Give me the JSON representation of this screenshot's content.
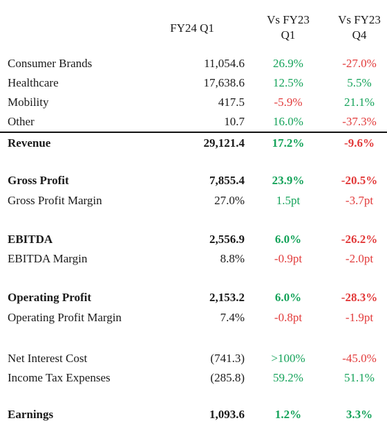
{
  "headers": {
    "col0": "",
    "col1": "FY24 Q1",
    "col2_line1": "Vs FY23",
    "col2_line2": "Q1",
    "col3_line1": "Vs FY23",
    "col3_line2": "Q4"
  },
  "rows": [
    {
      "label": "Consumer Brands",
      "value": "11,054.6",
      "vs_q1": "26.9%",
      "vs_q4": "-27.0%",
      "bold": false
    },
    {
      "label": "Healthcare",
      "value": "17,638.6",
      "vs_q1": "12.5%",
      "vs_q4": "5.5%",
      "bold": false
    },
    {
      "label": "Mobility",
      "value": "417.5",
      "vs_q1": "-5.9%",
      "vs_q4": "21.1%",
      "bold": false
    },
    {
      "label": "Other",
      "value": "10.7",
      "vs_q1": "16.0%",
      "vs_q4": "-37.3%",
      "bold": false
    },
    {
      "label": "Revenue",
      "value": "29,121.4",
      "vs_q1": "17.2%",
      "vs_q4": "-9.6%",
      "bold": true
    },
    {
      "label": "Gross Profit",
      "value": "7,855.4",
      "vs_q1": "23.9%",
      "vs_q4": "-20.5%",
      "bold": true
    },
    {
      "label": "Gross Profit Margin",
      "value": "27.0%",
      "vs_q1": "1.5pt",
      "vs_q4": "-3.7pt",
      "bold": false
    },
    {
      "label": "EBITDA",
      "value": "2,556.9",
      "vs_q1": "6.0%",
      "vs_q4": "-26.2%",
      "bold": true
    },
    {
      "label": "EBITDA Margin",
      "value": "8.8%",
      "vs_q1": "-0.9pt",
      "vs_q4": "-2.0pt",
      "bold": false
    },
    {
      "label": "Operating Profit",
      "value": "2,153.2",
      "vs_q1": "6.0%",
      "vs_q4": "-28.3%",
      "bold": true
    },
    {
      "label": "Operating Profit Margin",
      "value": "7.4%",
      "vs_q1": "-0.8pt",
      "vs_q4": "-1.9pt",
      "bold": false
    },
    {
      "label": "Net Interest Cost",
      "value": "(741.3)",
      "vs_q1": ">100%",
      "vs_q4": "-45.0%",
      "bold": false
    },
    {
      "label": "Income Tax Expenses",
      "value": "(285.8)",
      "vs_q1": "59.2%",
      "vs_q4": "51.1%",
      "bold": false
    },
    {
      "label": "Earnings",
      "value": "1,093.6",
      "vs_q1": "1.2%",
      "vs_q4": "3.3%",
      "bold": true
    }
  ],
  "colors": {
    "positive": "#15a35a",
    "negative": "#e23a3a",
    "rule": "#111111"
  }
}
